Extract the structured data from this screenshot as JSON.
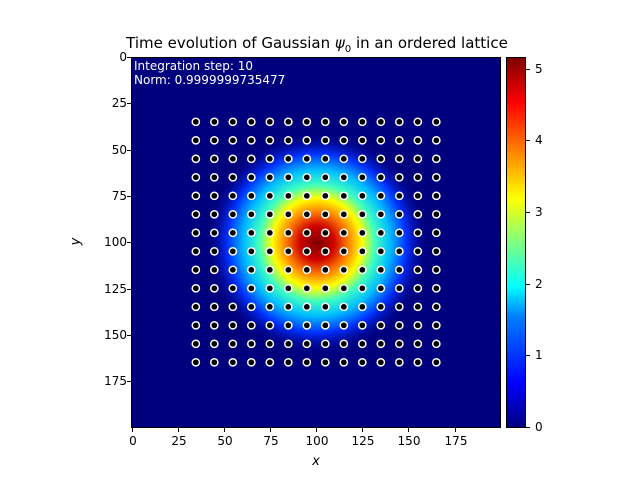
{
  "chart_data": {
    "type": "heatmap",
    "title": "Time evolution of Gaussian ψ₀ in an ordered lattice",
    "title_main": "Time evolution of Gaussian ",
    "title_psi": "ψ",
    "title_sub": "0",
    "title_rest": " in an ordered lattice",
    "xlabel": "x",
    "ylabel": "y",
    "xlim": [
      0,
      200
    ],
    "ylim": [
      200,
      0
    ],
    "xticks": [
      "0",
      "25",
      "50",
      "75",
      "100",
      "125",
      "150",
      "175"
    ],
    "yticks": [
      "0",
      "25",
      "50",
      "75",
      "100",
      "125",
      "150",
      "175"
    ],
    "colormap": "jet",
    "colorbar": {
      "range": [
        0,
        5.15
      ],
      "ticks": [
        "0",
        "1",
        "2",
        "3",
        "4",
        "5"
      ]
    },
    "annotations": {
      "step_label": "Integration step: 10",
      "norm_label": "Norm: 0.9999999735477"
    },
    "gaussian": {
      "center": [
        100,
        100
      ],
      "peak": 5.15,
      "sigma": 16
    },
    "lattice": {
      "x_start": 34,
      "y_start": 34,
      "spacing": 10,
      "count_x": 14,
      "count_y": 14,
      "marker": "white ring, black fill"
    }
  }
}
